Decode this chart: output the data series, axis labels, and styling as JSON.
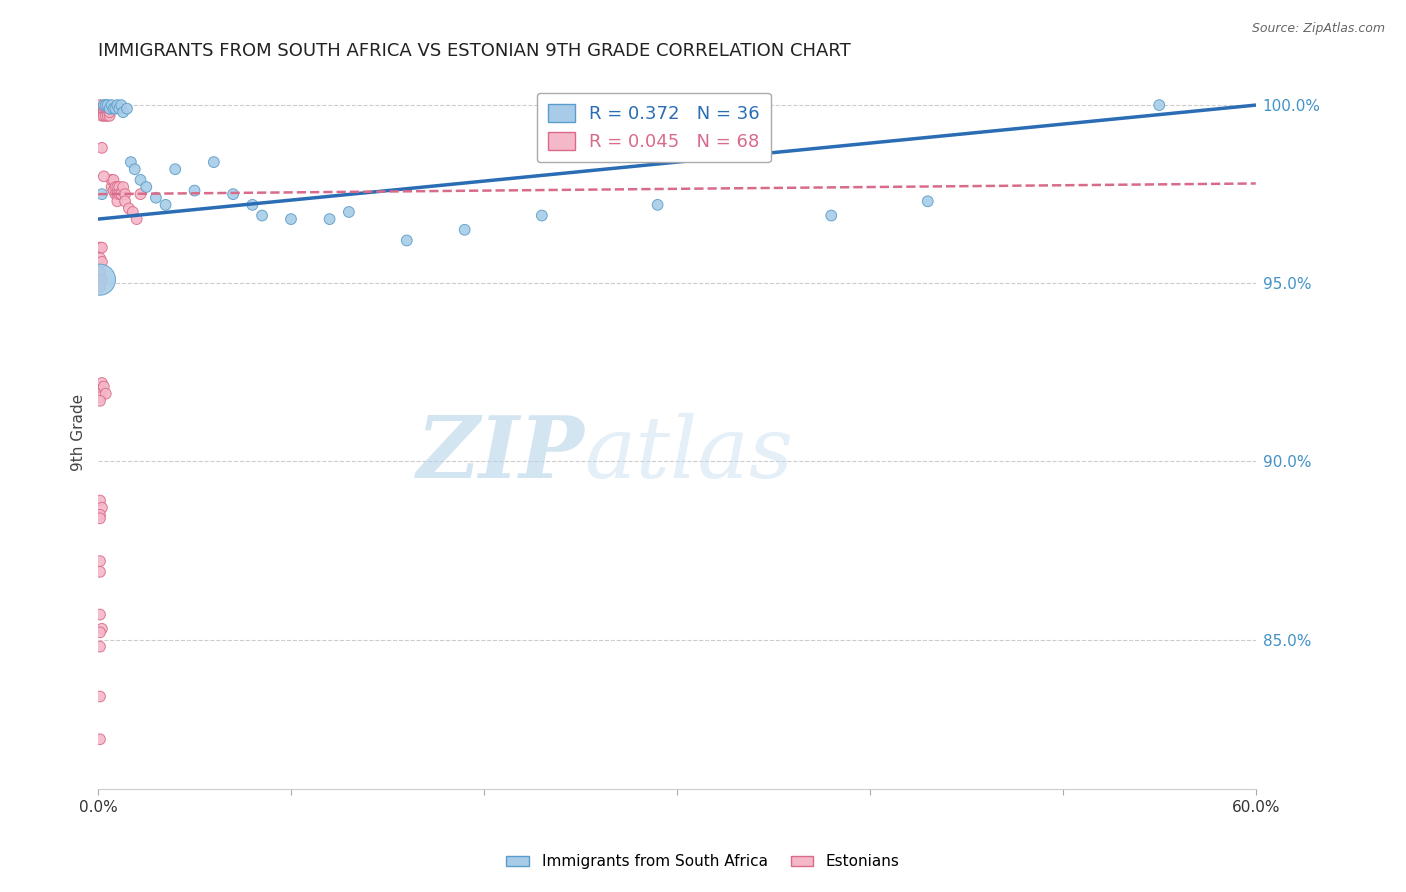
{
  "title": "IMMIGRANTS FROM SOUTH AFRICA VS ESTONIAN 9TH GRADE CORRELATION CHART",
  "source": "Source: ZipAtlas.com",
  "ylabel": "9th Grade",
  "x_min": 0.0,
  "x_max": 0.6,
  "y_min": 0.808,
  "y_max": 1.008,
  "yticks": [
    0.85,
    0.9,
    0.95,
    1.0
  ],
  "ytick_labels": [
    "85.0%",
    "90.0%",
    "95.0%",
    "100.0%"
  ],
  "blue_R": 0.372,
  "blue_N": 36,
  "pink_R": 0.045,
  "pink_N": 68,
  "blue_color": "#a8cce8",
  "blue_edge": "#5b9dca",
  "pink_color": "#f5b8c8",
  "pink_edge": "#d96b8a",
  "blue_line_color": "#2a6db5",
  "pink_line_color": "#d96b8a",
  "legend_label_blue": "Immigrants from South Africa",
  "legend_label_pink": "Estonians",
  "blue_trendline_x": [
    0.0,
    0.6
  ],
  "blue_trendline_y": [
    0.968,
    1.0
  ],
  "pink_trendline_x": [
    0.0,
    0.6
  ],
  "pink_trendline_y": [
    0.975,
    0.978
  ],
  "blue_x": [
    0.003,
    0.004,
    0.005,
    0.006,
    0.007,
    0.008,
    0.009,
    0.01,
    0.011,
    0.012,
    0.013,
    0.015,
    0.017,
    0.019,
    0.022,
    0.025,
    0.03,
    0.035,
    0.04,
    0.05,
    0.06,
    0.07,
    0.08,
    0.085,
    0.1,
    0.12,
    0.13,
    0.16,
    0.19,
    0.23,
    0.29,
    0.38,
    0.43,
    0.55,
    0.002,
    0.001
  ],
  "blue_y": [
    1.0,
    1.0,
    1.0,
    0.999,
    1.0,
    0.999,
    0.999,
    1.0,
    0.999,
    1.0,
    0.998,
    0.999,
    0.984,
    0.982,
    0.979,
    0.977,
    0.974,
    0.972,
    0.982,
    0.976,
    0.984,
    0.975,
    0.972,
    0.969,
    0.968,
    0.968,
    0.97,
    0.962,
    0.965,
    0.969,
    0.972,
    0.969,
    0.973,
    1.0,
    0.975,
    0.951
  ],
  "blue_sizes": [
    60,
    60,
    60,
    60,
    60,
    60,
    60,
    60,
    60,
    60,
    60,
    60,
    60,
    60,
    60,
    60,
    60,
    60,
    60,
    60,
    60,
    60,
    60,
    60,
    60,
    60,
    60,
    60,
    60,
    60,
    60,
    60,
    60,
    60,
    60,
    500
  ],
  "pink_x": [
    0.001,
    0.001,
    0.001,
    0.002,
    0.002,
    0.002,
    0.002,
    0.003,
    0.003,
    0.003,
    0.004,
    0.004,
    0.004,
    0.005,
    0.005,
    0.005,
    0.006,
    0.006,
    0.006,
    0.007,
    0.007,
    0.008,
    0.008,
    0.009,
    0.009,
    0.01,
    0.01,
    0.01,
    0.011,
    0.011,
    0.012,
    0.013,
    0.014,
    0.014,
    0.016,
    0.018,
    0.02,
    0.022,
    0.002,
    0.003,
    0.001,
    0.002,
    0.001,
    0.002,
    0.001,
    0.001,
    0.002,
    0.001,
    0.001,
    0.002,
    0.001,
    0.002,
    0.001,
    0.003,
    0.004,
    0.001,
    0.001,
    0.002,
    0.001,
    0.001,
    0.001,
    0.001,
    0.001,
    0.002,
    0.001,
    0.001,
    0.001,
    0.001
  ],
  "pink_y": [
    1.0,
    0.999,
    0.998,
    0.999,
    0.998,
    0.997,
    0.999,
    0.999,
    0.998,
    0.997,
    0.998,
    0.997,
    0.999,
    0.998,
    0.997,
    0.999,
    0.997,
    0.998,
    0.999,
    0.977,
    0.979,
    0.976,
    0.979,
    0.977,
    0.975,
    0.977,
    0.975,
    0.973,
    0.977,
    0.975,
    0.975,
    0.977,
    0.975,
    0.973,
    0.971,
    0.97,
    0.968,
    0.975,
    0.988,
    0.98,
    0.96,
    0.96,
    0.957,
    0.956,
    0.953,
    0.951,
    0.951,
    0.949,
    0.921,
    0.922,
    0.92,
    0.919,
    0.918,
    0.921,
    0.919,
    0.917,
    0.889,
    0.887,
    0.885,
    0.884,
    0.872,
    0.869,
    0.857,
    0.853,
    0.852,
    0.848,
    0.834,
    0.822
  ],
  "pink_sizes": [
    60,
    60,
    60,
    60,
    60,
    60,
    60,
    60,
    60,
    60,
    60,
    60,
    60,
    60,
    60,
    60,
    60,
    60,
    60,
    60,
    60,
    60,
    60,
    60,
    60,
    60,
    60,
    60,
    60,
    60,
    60,
    60,
    60,
    60,
    60,
    60,
    60,
    60,
    60,
    60,
    60,
    60,
    60,
    60,
    60,
    60,
    60,
    60,
    60,
    60,
    60,
    60,
    60,
    60,
    60,
    60,
    60,
    60,
    60,
    60,
    60,
    60,
    60,
    60,
    60,
    60,
    60,
    60
  ]
}
